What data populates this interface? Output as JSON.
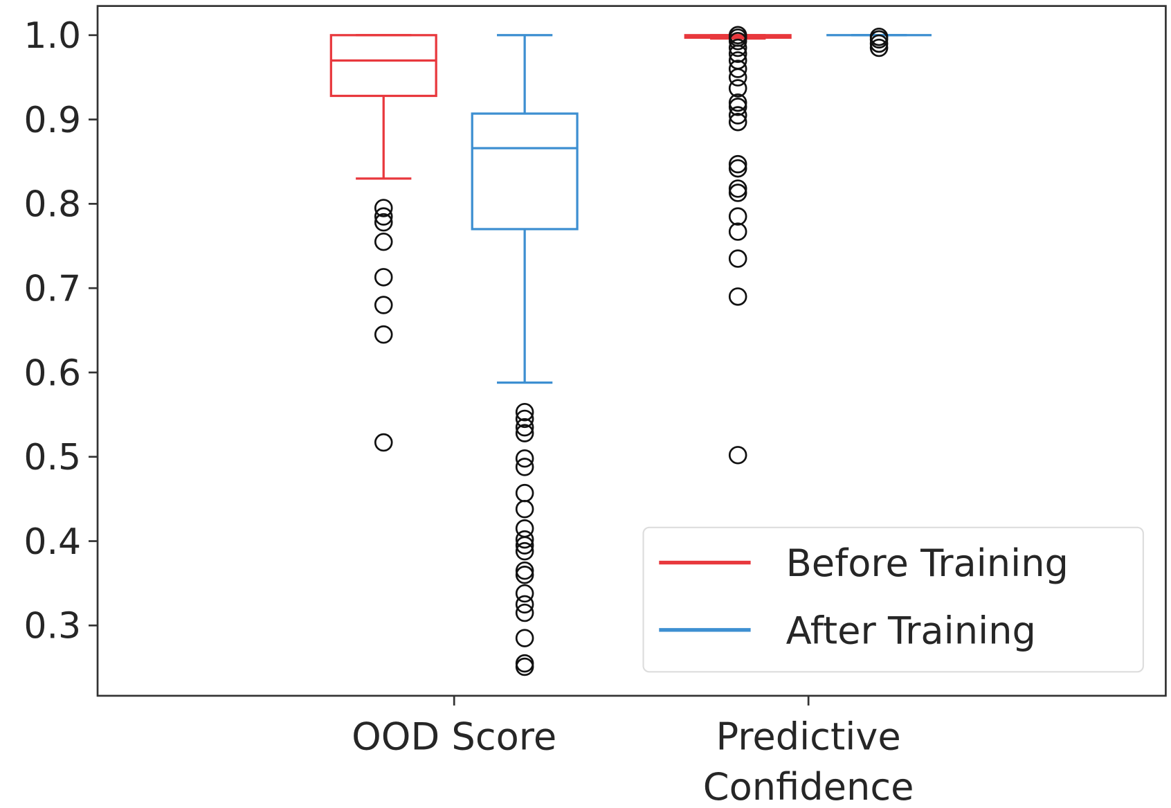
{
  "chart_data": {
    "type": "box",
    "title": "",
    "xlabel": "",
    "ylabel": "",
    "ylim": [
      0.2166,
      1.0346
    ],
    "yticks": [
      "0.3",
      "0.4",
      "0.5",
      "0.6",
      "0.7",
      "0.8",
      "0.9",
      "1.0"
    ],
    "ytick_values": [
      0.3,
      0.4,
      0.5,
      0.6,
      0.7,
      0.8,
      0.9,
      1.0
    ],
    "categories": [
      "OOD Score",
      "Predictive\nConfidence"
    ],
    "category_lines": [
      [
        "OOD Score"
      ],
      [
        "Predictive",
        "Confidence"
      ]
    ],
    "legend": {
      "placement": "lower-right",
      "entries": [
        "Before Training",
        "After Training"
      ]
    },
    "series": [
      {
        "name": "Before Training",
        "color": "#e8383d",
        "boxes": [
          {
            "whislo": 0.83,
            "q1": 0.928,
            "med": 0.97,
            "q3": 1.0,
            "whishi": 1.0,
            "fliers": [
              0.795,
              0.785,
              0.778,
              0.755,
              0.713,
              0.68,
              0.645,
              0.517
            ]
          },
          {
            "whislo": 0.996,
            "q1": 0.997,
            "med": 0.999,
            "q3": 1.0,
            "whishi": 1.0,
            "fliers": [
              1.0,
              0.997,
              0.993,
              0.985,
              0.978,
              0.97,
              0.96,
              0.95,
              0.937,
              0.92,
              0.915,
              0.905,
              0.897,
              0.847,
              0.842,
              0.818,
              0.813,
              0.785,
              0.767,
              0.735,
              0.69,
              0.502
            ]
          }
        ]
      },
      {
        "name": "After Training",
        "color": "#3d8fd1",
        "boxes": [
          {
            "whislo": 0.588,
            "q1": 0.77,
            "med": 0.866,
            "q3": 0.907,
            "whishi": 1.0,
            "fliers": [
              0.553,
              0.545,
              0.535,
              0.528,
              0.498,
              0.488,
              0.457,
              0.438,
              0.415,
              0.402,
              0.395,
              0.388,
              0.365,
              0.36,
              0.338,
              0.325,
              0.315,
              0.285,
              0.255,
              0.251
            ]
          },
          {
            "whislo": 1.0,
            "q1": 1.0,
            "med": 1.0,
            "q3": 1.0,
            "whishi": 1.0,
            "fliers": [
              0.998,
              0.995,
              0.99,
              0.985
            ]
          }
        ]
      }
    ]
  }
}
